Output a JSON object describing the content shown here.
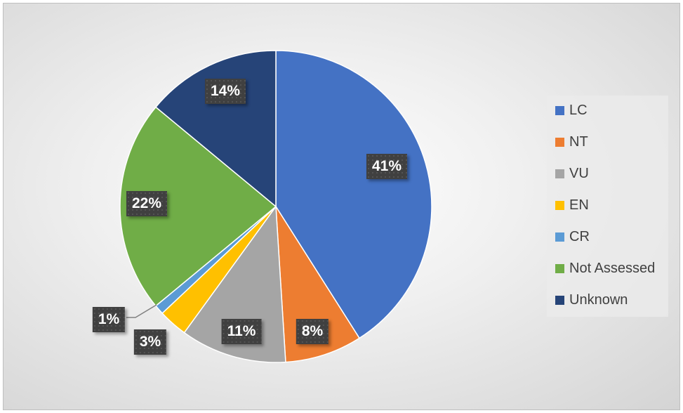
{
  "chart_data": {
    "type": "pie",
    "categories": [
      "LC",
      "NT",
      "VU",
      "EN",
      "CR",
      "Not Assessed",
      "Unknown"
    ],
    "values": [
      41,
      8,
      11,
      3,
      1,
      22,
      14
    ],
    "data_labels": [
      "41%",
      "8%",
      "11%",
      "3%",
      "1%",
      "22%",
      "14%"
    ],
    "colors": [
      "#4472C4",
      "#ED7D31",
      "#A5A5A5",
      "#FFC000",
      "#5B9BD5",
      "#70AD47",
      "#264478"
    ],
    "legend_position": "right",
    "start_angle": "top, clockwise"
  }
}
